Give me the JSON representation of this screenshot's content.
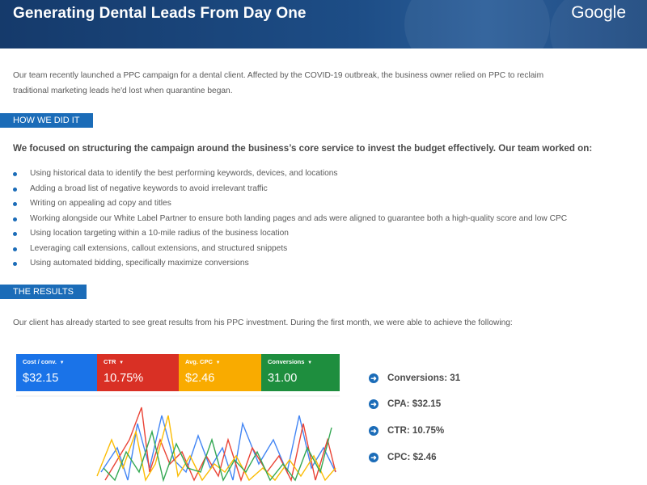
{
  "header": {
    "title": "Generating Dental Leads From Day One",
    "logo": "Google"
  },
  "intro": "Our team recently launched a PPC campaign for a dental client. Affected by the COVID-19 outbreak, the business owner relied on PPC to reclaim traditional marketing leads he'd lost when quarantine began.",
  "how": {
    "label": "HOW WE DID IT",
    "heading": "We focused on structuring the campaign around the business’s core service to invest the budget effectively. Our team worked on:",
    "bullets": [
      "Using historical data to identify the best performing keywords, devices, and locations",
      "Adding a broad list of negative keywords to avoid irrelevant traffic",
      "Writing on appealing ad copy and titles",
      "Working alongside our White Label Partner to ensure both landing pages and ads were aligned to guarantee both a high-quality score and low CPC",
      "Using location targeting within a 10-mile radius of the business location",
      "Leveraging call extensions, callout extensions, and structured snippets",
      "Using automated bidding, specifically maximize conversions"
    ]
  },
  "results": {
    "label": "THE RESULTS",
    "text": "Our client has already started to see great results from his PPC investment. During the first month, we were able to achieve the following:"
  },
  "dashboard": {
    "tiles": [
      {
        "label": "Cost / conv.",
        "value": "$32.15",
        "color": "#1a73e8"
      },
      {
        "label": "CTR",
        "value": "10.75%",
        "color": "#d93025"
      },
      {
        "label": "Avg. CPC",
        "value": "$2.46",
        "color": "#f9ab00"
      },
      {
        "label": "Conversions",
        "value": "31.00",
        "color": "#1e8e3e"
      }
    ]
  },
  "stats": [
    {
      "text": "Conversions: 31"
    },
    {
      "text": "CPA: $32.15"
    },
    {
      "text": "CTR: 10.75%"
    },
    {
      "text": "CPC: $2.46"
    }
  ],
  "colors": {
    "accent": "#1b6cb8",
    "header": "#1d4d86"
  }
}
